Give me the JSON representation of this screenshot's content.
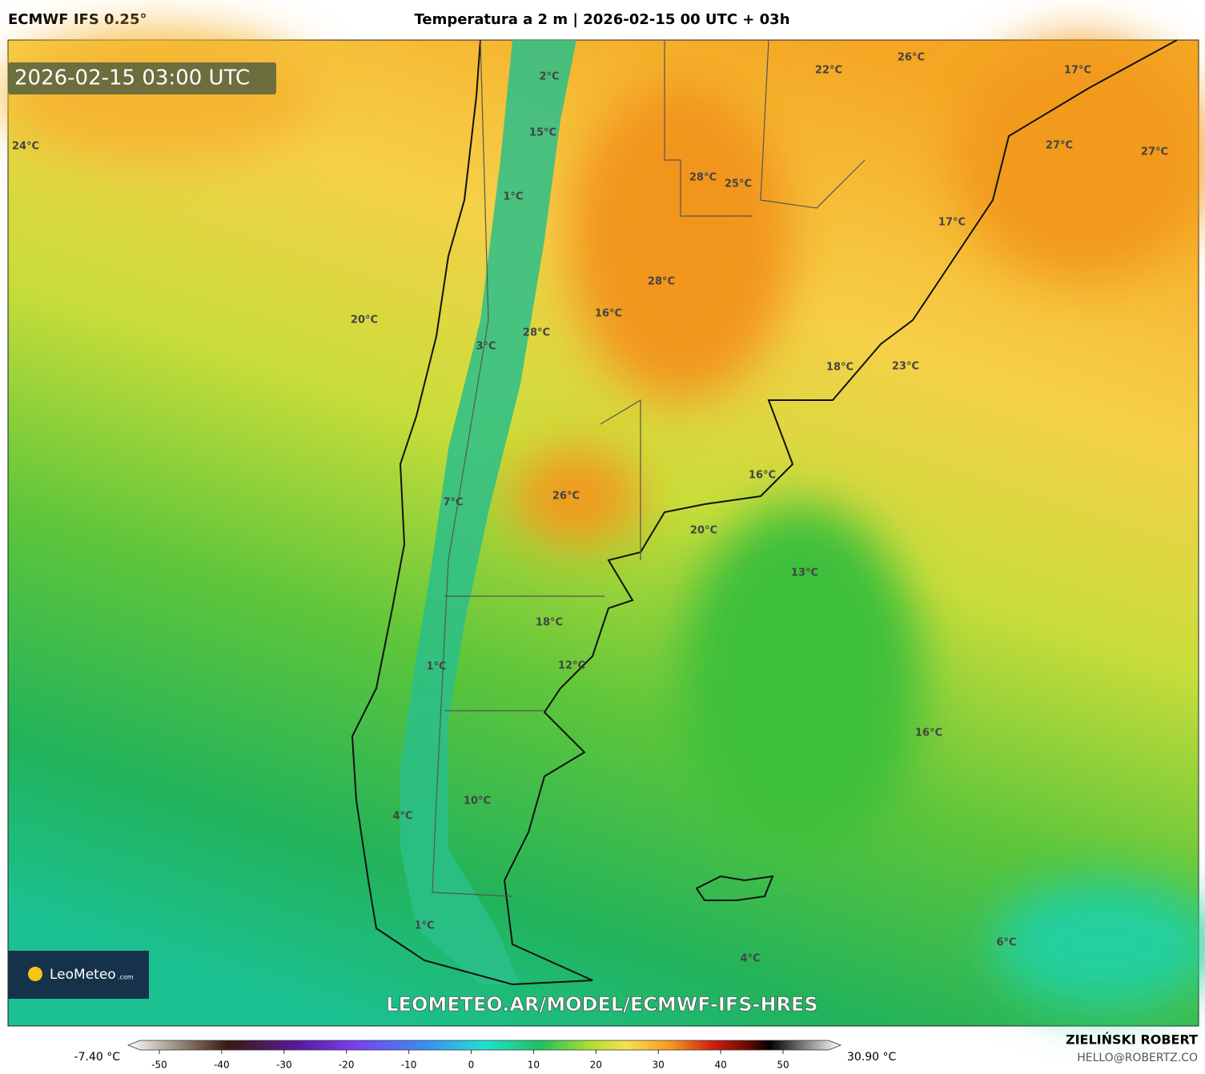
{
  "header": {
    "title_left": "ECMWF IFS 0.25°",
    "title_center": "Temperatura a 2 m | 2026-02-15 00 UTC + 03h"
  },
  "timestamp": "2026-02-15 03:00 UTC",
  "map_labels": [
    "24°C",
    "2°C",
    "15°C",
    "26°C",
    "22°C",
    "17°C",
    "27°C",
    "27°C",
    "28°C",
    "25°C",
    "1°C",
    "17°C",
    "28°C",
    "16°C",
    "20°C",
    "28°C",
    "3°C",
    "18°C",
    "23°C",
    "16°C",
    "26°C",
    "7°C",
    "20°C",
    "13°C",
    "18°C",
    "12°C",
    "1°C",
    "16°C",
    "10°C",
    "4°C",
    "1°C",
    "6°C",
    "4°C"
  ],
  "logo": {
    "name": "LeoMeteo",
    "suffix": ".com"
  },
  "url": "LEOMETEO.AR/MODEL/ECMWF-IFS-HRES",
  "colorbar": {
    "min_label": "-7.40 °C",
    "max_label": "30.90 °C",
    "ticks": [
      -50,
      -40,
      -30,
      -20,
      -10,
      0,
      10,
      20,
      30,
      40,
      50
    ]
  },
  "credit": {
    "name": "ZIELIŃSKI ROBERT",
    "email": "HELLO@ROBERTZ.CO"
  }
}
